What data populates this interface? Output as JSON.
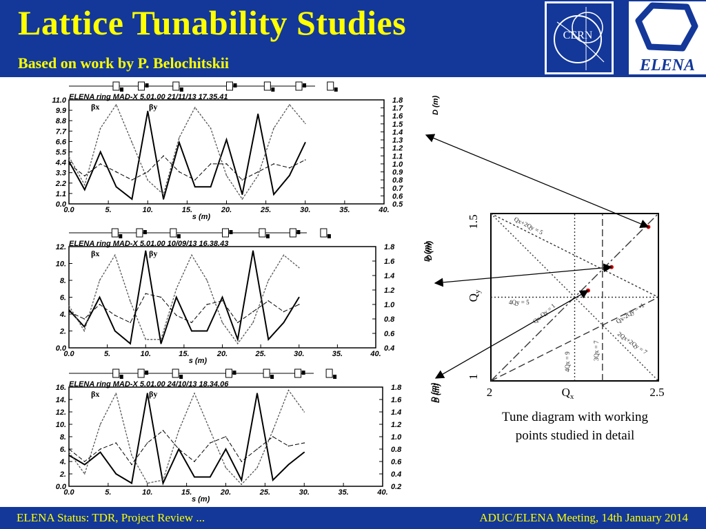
{
  "slide": {
    "title": "Lattice Tunability Studies",
    "subtitle": "Based on work by P. Belochitskii",
    "logos": {
      "cern": "CERN",
      "elena": "ELENA"
    },
    "footer_left": "ELENA Status: TDR, Project Review ...",
    "footer_right": "ADUC/ELENA Meeting, 14th January 2014",
    "caption_line1": "Tune diagram with working",
    "caption_line2": "points studied in detail"
  },
  "colors": {
    "header_bg": "#13389a",
    "title": "#ffff00",
    "working_point": "#cc0000"
  },
  "chart_data": [
    {
      "type": "line",
      "title": "ELENA ring     MAD-X 5.01.00  21/11/13 17.35.41",
      "xlabel": "s (m)",
      "xlim": [
        0,
        40
      ],
      "x_ticks": [
        "0.0",
        "5.",
        "10.",
        "15.",
        "20.",
        "25.",
        "30.",
        "35.",
        "40."
      ],
      "y_ticks_left": [
        "0.0",
        "1.1",
        "2.2",
        "3.3",
        "4.4",
        "5.5",
        "6.6",
        "7.7",
        "8.8",
        "9.9",
        "11.0"
      ],
      "y_ticks_right": [
        "0.5",
        "0.6",
        "0.7",
        "0.8",
        "0.9",
        "1.0",
        "1.1",
        "1.2",
        "1.3",
        "1.4",
        "1.5",
        "1.6",
        "1.7",
        "1.8"
      ],
      "ylim_left": [
        0,
        11
      ],
      "ylim_right": [
        0.5,
        1.8
      ],
      "legend": [
        "βx",
        "βy",
        "D (m)"
      ],
      "right_label": "D (m)",
      "series": [
        {
          "name": "βx",
          "x": [
            0,
            2,
            4,
            6,
            8,
            10,
            12,
            14,
            16,
            18,
            20,
            22,
            24,
            26,
            28,
            30
          ],
          "values": [
            4.5,
            1.5,
            5.5,
            1.8,
            0.5,
            9.8,
            0.5,
            6.5,
            1.8,
            1.8,
            6.8,
            1.0,
            9.5,
            1.0,
            3.0,
            6.5
          ]
        },
        {
          "name": "βy",
          "x": [
            0,
            2,
            4,
            6,
            8,
            10,
            12,
            14,
            16,
            18,
            20,
            22,
            24,
            26,
            28,
            30
          ],
          "values": [
            5.0,
            2.0,
            8.0,
            10.5,
            6.5,
            2.5,
            1.0,
            7.0,
            10.2,
            8.0,
            3.0,
            0.5,
            3.0,
            8.0,
            10.5,
            8.5
          ]
        },
        {
          "name": "D (m)",
          "x": [
            0,
            2,
            4,
            6,
            8,
            10,
            12,
            14,
            16,
            18,
            20,
            22,
            24,
            26,
            28,
            30
          ],
          "values": [
            1.0,
            0.85,
            1.0,
            0.9,
            0.8,
            0.9,
            1.1,
            0.9,
            0.8,
            1.0,
            1.0,
            0.8,
            0.9,
            1.0,
            0.95,
            1.05
          ]
        }
      ]
    },
    {
      "type": "line",
      "title": "ELENA ring     MAD-X 5.01.00  10/09/13 16.38.43",
      "xlabel": "s (m)",
      "xlim": [
        0,
        40
      ],
      "x_ticks": [
        "0.0",
        "5.",
        "10.",
        "15.",
        "20.",
        "25.",
        "30.",
        "35.",
        "40."
      ],
      "y_ticks_left": [
        "0.0",
        "2.",
        "4.",
        "6.",
        "8.",
        "10.",
        "12."
      ],
      "y_ticks_right": [
        "0.4",
        "0.6",
        "0.8",
        "1.0",
        "1.2",
        "1.4",
        "1.6",
        "1.8"
      ],
      "ylim_left": [
        0,
        12
      ],
      "ylim_right": [
        0.4,
        1.8
      ],
      "legend": [
        "βx",
        "βy",
        "D (m)"
      ],
      "right_label": "D (m)",
      "series": [
        {
          "name": "βx",
          "x": [
            0,
            2,
            4,
            6,
            8,
            10,
            12,
            14,
            16,
            18,
            20,
            22,
            24,
            26,
            28,
            30
          ],
          "values": [
            4.5,
            2.5,
            6.0,
            2.0,
            0.5,
            11.5,
            0.5,
            6.0,
            2.0,
            2.0,
            6.0,
            1.0,
            11.5,
            1.0,
            3.0,
            6.0
          ]
        },
        {
          "name": "βy",
          "x": [
            0,
            2,
            4,
            6,
            8,
            10,
            12,
            14,
            16,
            18,
            20,
            22,
            24,
            26,
            28,
            30
          ],
          "values": [
            5.0,
            2.0,
            8.0,
            11.0,
            5.5,
            1.0,
            1.0,
            7.0,
            11.0,
            8.0,
            3.0,
            0.5,
            3.0,
            8.0,
            11.0,
            9.5
          ]
        },
        {
          "name": "D (m)",
          "x": [
            0,
            2,
            4,
            6,
            8,
            10,
            12,
            14,
            16,
            18,
            20,
            22,
            24,
            26,
            28,
            30
          ],
          "values": [
            0.9,
            0.8,
            1.0,
            0.85,
            0.75,
            1.15,
            1.1,
            0.85,
            0.75,
            1.0,
            1.05,
            0.75,
            0.9,
            1.05,
            0.9,
            1.0
          ]
        }
      ]
    },
    {
      "type": "line",
      "title": "ELENA ring     MAD-X 5.01.00  24/10/13 18.34.06",
      "xlabel": "s (m)",
      "xlim": [
        0,
        40
      ],
      "x_ticks": [
        "0.0",
        "5.",
        "10.",
        "15.",
        "20.",
        "25.",
        "30.",
        "35.",
        "40."
      ],
      "y_ticks_left": [
        "0.0",
        "2.",
        "4.",
        "6.",
        "8.",
        "10.",
        "12.",
        "14.",
        "16."
      ],
      "y_ticks_right": [
        "0.2",
        "0.4",
        "0.6",
        "0.8",
        "1.0",
        "1.2",
        "1.4",
        "1.6",
        "1.8"
      ],
      "ylim_left": [
        0,
        16
      ],
      "ylim_right": [
        0.2,
        1.8
      ],
      "legend": [
        "βx",
        "βy",
        "D (m)"
      ],
      "right_label": "D (m)",
      "series": [
        {
          "name": "βx",
          "x": [
            0,
            2,
            4,
            6,
            8,
            10,
            12,
            14,
            16,
            18,
            20,
            22,
            24,
            26,
            28,
            30
          ],
          "values": [
            5.0,
            3.5,
            5.5,
            2.0,
            0.5,
            15.0,
            0.5,
            6.0,
            1.5,
            1.5,
            6.0,
            1.0,
            15.0,
            1.0,
            3.5,
            5.5
          ]
        },
        {
          "name": "βy",
          "x": [
            0,
            2,
            4,
            6,
            8,
            10,
            12,
            14,
            16,
            18,
            20,
            22,
            24,
            26,
            28,
            30
          ],
          "values": [
            5.5,
            2.0,
            10.0,
            15.0,
            5.0,
            0.5,
            1.0,
            9.0,
            15.0,
            9.0,
            3.0,
            0.3,
            3.0,
            9.0,
            15.5,
            12.0
          ]
        },
        {
          "name": "D (m)",
          "x": [
            0,
            2,
            4,
            6,
            8,
            10,
            12,
            14,
            16,
            18,
            20,
            22,
            24,
            26,
            28,
            30
          ],
          "values": [
            0.8,
            0.6,
            0.8,
            0.9,
            0.55,
            0.9,
            1.1,
            0.8,
            0.6,
            0.9,
            1.0,
            0.6,
            0.8,
            1.0,
            0.85,
            0.9
          ]
        }
      ]
    },
    {
      "type": "scatter",
      "title": "",
      "xlabel": "Qx",
      "ylabel": "Qy",
      "xlim": [
        2,
        2.5
      ],
      "ylim": [
        1,
        1.5
      ],
      "x_ticks": [
        "2",
        "2.5"
      ],
      "y_ticks": [
        "1",
        "1.5"
      ],
      "resonance_labels": [
        "Qx+2Qy = 5",
        "4Qx = 9",
        "3Qx = 7",
        "2Qx+2Qy = 7",
        "Qx-2Qy = -1",
        "4Qy = 5",
        "Qx-Qy = 1"
      ],
      "working_points": [
        {
          "x": 2.29,
          "y": 1.27
        },
        {
          "x": 2.36,
          "y": 1.34
        },
        {
          "x": 2.47,
          "y": 1.46
        }
      ]
    }
  ]
}
